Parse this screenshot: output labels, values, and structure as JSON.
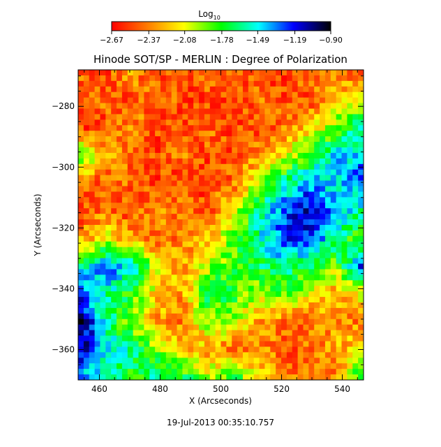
{
  "chart_data": {
    "type": "heatmap",
    "title": "Hinode SOT/SP - MERLIN : Degree of Polarization",
    "xlabel": "X (Arcseconds)",
    "ylabel": "Y (Arcseconds)",
    "xlim": [
      453,
      547
    ],
    "ylim": [
      -370,
      -268
    ],
    "x_ticks": [
      460,
      480,
      500,
      520,
      540
    ],
    "y_ticks": [
      -280,
      -300,
      -320,
      -340,
      -360
    ],
    "x_tick_labels": [
      "460",
      "480",
      "500",
      "520",
      "540"
    ],
    "y_tick_labels": [
      "−280",
      "−300",
      "−320",
      "−340",
      "−360"
    ],
    "colorbar": {
      "label": "Log",
      "label_subscript": "10",
      "range": [
        -2.67,
        -0.9
      ],
      "ticks": [
        -2.67,
        -2.37,
        -2.08,
        -1.78,
        -1.49,
        -1.19,
        -0.9
      ],
      "tick_labels": [
        "−2.67",
        "−2.37",
        "−2.08",
        "−1.78",
        "−1.49",
        "−1.19",
        "−0.90"
      ],
      "colormap": [
        "#ff0000",
        "#ff8000",
        "#ffff00",
        "#00ff00",
        "#00ffff",
        "#0000ff",
        "#000000"
      ]
    },
    "value_grid": {
      "description": "coarse estimate of log10 degree of polarization, rows from top (Y=-268) to bottom (Y=-370), cols from X=453 to X=547",
      "values": [
        [
          -2.4,
          -2.5,
          -2.3,
          -2.5,
          -2.5,
          -2.4,
          -2.5,
          -2.5,
          -2.5,
          -2.4,
          -2.3,
          -2.5
        ],
        [
          -2.5,
          -2.4,
          -2.5,
          -2.4,
          -2.5,
          -2.5,
          -2.5,
          -2.4,
          -2.5,
          -2.5,
          -2.2,
          -2.1
        ],
        [
          -2.5,
          -2.5,
          -2.3,
          -2.5,
          -2.5,
          -2.4,
          -2.5,
          -2.5,
          -2.4,
          -2.2,
          -1.9,
          -1.6
        ],
        [
          -1.9,
          -2.2,
          -2.5,
          -2.5,
          -2.4,
          -2.5,
          -2.5,
          -2.3,
          -2.1,
          -1.8,
          -1.5,
          -1.4
        ],
        [
          -2.4,
          -2.5,
          -2.4,
          -2.5,
          -2.5,
          -2.5,
          -2.4,
          -2.0,
          -1.6,
          -1.4,
          -1.5,
          -1.3
        ],
        [
          -2.5,
          -2.4,
          -2.5,
          -2.3,
          -2.4,
          -2.5,
          -2.1,
          -1.6,
          -1.3,
          -1.1,
          -1.4,
          -1.6
        ],
        [
          -2.3,
          -2.1,
          -2.3,
          -2.4,
          -2.4,
          -2.2,
          -1.9,
          -1.6,
          -1.2,
          -1.3,
          -1.6,
          -1.9
        ],
        [
          -1.6,
          -1.3,
          -1.5,
          -2.1,
          -2.3,
          -2.0,
          -1.8,
          -1.7,
          -1.6,
          -1.7,
          -1.9,
          -1.3
        ],
        [
          -1.3,
          -1.6,
          -1.8,
          -2.2,
          -2.3,
          -1.7,
          -1.8,
          -2.0,
          -1.9,
          -2.1,
          -2.3,
          -2.1
        ],
        [
          -1.0,
          -1.6,
          -2.0,
          -2.3,
          -2.4,
          -1.9,
          -2.0,
          -2.3,
          -2.4,
          -2.4,
          -2.3,
          -2.4
        ],
        [
          -1.1,
          -1.5,
          -1.6,
          -1.9,
          -2.2,
          -2.3,
          -2.4,
          -2.3,
          -2.5,
          -2.4,
          -2.3,
          -2.1
        ],
        [
          -1.4,
          -1.6,
          -1.8,
          -1.6,
          -1.7,
          -2.0,
          -1.8,
          -2.1,
          -2.4,
          -2.4,
          -2.4,
          -1.7
        ]
      ]
    }
  },
  "footer": {
    "timestamp": "19-Jul-2013 00:35:10.757"
  }
}
